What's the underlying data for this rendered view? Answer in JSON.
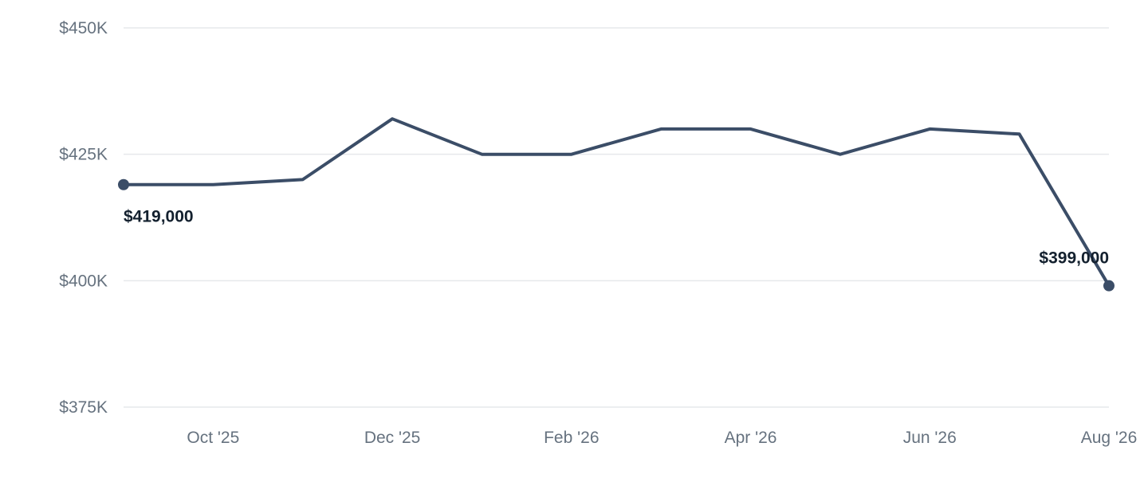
{
  "chart_data": {
    "type": "line",
    "title": "",
    "xlabel": "",
    "ylabel": "",
    "x": [
      "Sep '25",
      "Oct '25",
      "Nov '25",
      "Dec '25",
      "Jan '26",
      "Feb '26",
      "Mar '26",
      "Apr '26",
      "May '26",
      "Jun '26",
      "Jul '26",
      "Aug '26"
    ],
    "x_tick_labels": [
      "Oct '25",
      "Dec '25",
      "Feb '26",
      "Apr '26",
      "Jun '26",
      "Aug '26"
    ],
    "y_tick_labels": [
      "$450K",
      "$425K",
      "$400K",
      "$375K"
    ],
    "y_ticks": [
      450000,
      425000,
      400000,
      375000
    ],
    "ylim": [
      375000,
      450000
    ],
    "grid": true,
    "series": [
      {
        "values": [
          419000,
          419000,
          420000,
          432000,
          425000,
          425000,
          430000,
          430000,
          425000,
          430000,
          429000,
          399000
        ],
        "color": "#3b4d67"
      }
    ],
    "annotations": [
      {
        "index": 0,
        "text": "$419,000"
      },
      {
        "index": 11,
        "text": "$399,000"
      }
    ]
  }
}
